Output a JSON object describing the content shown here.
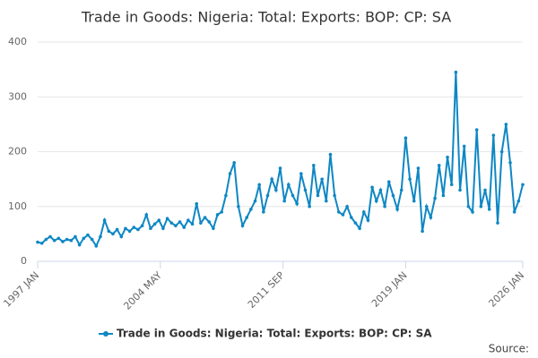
{
  "chart_data": {
    "type": "line",
    "title": "Trade in Goods: Nigeria: Total: Exports: BOP: CP: SA",
    "source": "Source:",
    "xlim": [
      1997,
      2026
    ],
    "ylim": [
      0,
      400
    ],
    "yticks": [
      0,
      100,
      200,
      300,
      400
    ],
    "grid": true,
    "legend": "bottom",
    "xticks": [
      {
        "value": 1997,
        "label": "1997 JAN"
      },
      {
        "value": 2004.333,
        "label": "2004 MAY"
      },
      {
        "value": 2011.667,
        "label": "2011 SEP"
      },
      {
        "value": 2019,
        "label": "2019 JAN"
      },
      {
        "value": 2026,
        "label": "2026 JAN"
      }
    ],
    "x": [
      1997,
      1997.25,
      1997.5,
      1997.75,
      1998,
      1998.25,
      1998.5,
      1998.75,
      1999,
      1999.25,
      1999.5,
      1999.75,
      2000,
      2000.25,
      2000.5,
      2000.75,
      2001,
      2001.25,
      2001.5,
      2001.75,
      2002,
      2002.25,
      2002.5,
      2002.75,
      2003,
      2003.25,
      2003.5,
      2003.75,
      2004,
      2004.25,
      2004.5,
      2004.75,
      2005,
      2005.25,
      2005.5,
      2005.75,
      2006,
      2006.25,
      2006.5,
      2006.75,
      2007,
      2007.25,
      2007.5,
      2007.75,
      2008,
      2008.25,
      2008.5,
      2008.75,
      2009,
      2009.25,
      2009.5,
      2009.75,
      2010,
      2010.25,
      2010.5,
      2010.75,
      2011,
      2011.25,
      2011.5,
      2011.75,
      2012,
      2012.25,
      2012.5,
      2012.75,
      2013,
      2013.25,
      2013.5,
      2013.75,
      2014,
      2014.25,
      2014.5,
      2014.75,
      2015,
      2015.25,
      2015.5,
      2015.75,
      2016,
      2016.25,
      2016.5,
      2016.75,
      2017,
      2017.25,
      2017.5,
      2017.75,
      2018,
      2018.25,
      2018.5,
      2018.75,
      2019,
      2019.25,
      2019.5,
      2019.75,
      2020,
      2020.25,
      2020.5,
      2020.75,
      2021,
      2021.25,
      2021.5,
      2021.75,
      2022,
      2022.25,
      2022.5,
      2022.75,
      2023,
      2023.25,
      2023.5,
      2023.75,
      2024,
      2024.25,
      2024.5,
      2024.75,
      2025,
      2025.25,
      2025.5,
      2025.75,
      2026
    ],
    "series": [
      {
        "name": "Trade in Goods: Nigeria: Total: Exports: BOP: CP: SA",
        "color": "#0e87c4",
        "values": [
          35,
          33,
          40,
          45,
          38,
          42,
          36,
          40,
          38,
          45,
          30,
          42,
          48,
          40,
          28,
          45,
          75,
          55,
          50,
          58,
          45,
          60,
          55,
          62,
          58,
          65,
          85,
          60,
          68,
          75,
          60,
          78,
          70,
          65,
          72,
          62,
          75,
          68,
          105,
          70,
          80,
          72,
          60,
          85,
          90,
          120,
          160,
          180,
          100,
          65,
          80,
          95,
          110,
          140,
          90,
          120,
          150,
          130,
          170,
          110,
          140,
          120,
          105,
          160,
          130,
          100,
          175,
          120,
          150,
          110,
          195,
          120,
          90,
          85,
          100,
          80,
          70,
          60,
          90,
          75,
          135,
          110,
          130,
          100,
          145,
          120,
          95,
          130,
          225,
          150,
          110,
          170,
          55,
          100,
          80,
          115,
          175,
          120,
          190,
          140,
          345,
          130,
          210,
          100,
          90,
          240,
          100,
          130,
          95,
          230,
          70,
          200,
          250,
          180,
          90,
          110,
          140
        ]
      }
    ]
  }
}
